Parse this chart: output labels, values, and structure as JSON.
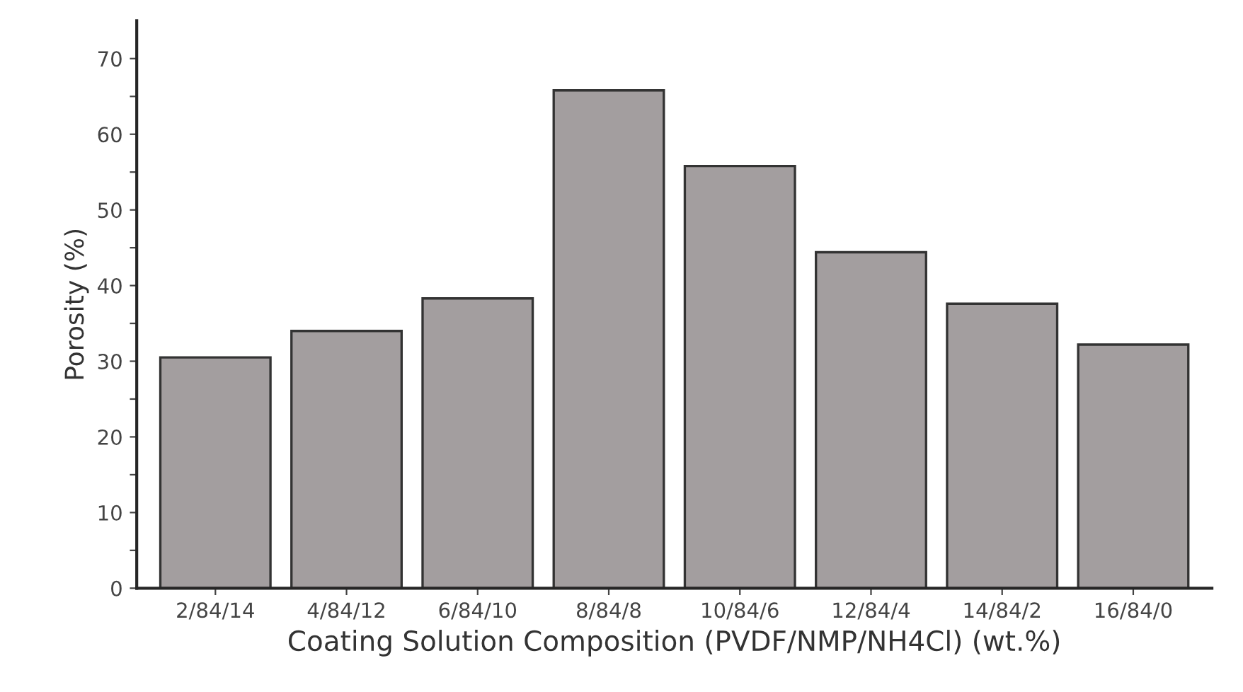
{
  "chart_data": {
    "type": "bar",
    "xlabel": "Coating Solution Composition (PVDF/NMP/NH4Cl) (wt.%)",
    "ylabel": "Porosity (%)",
    "categories": [
      "2/84/14",
      "4/84/12",
      "6/84/10",
      "8/84/8",
      "10/84/6",
      "12/84/4",
      "14/84/2",
      "16/84/0"
    ],
    "values": [
      30.5,
      34.0,
      38.3,
      65.8,
      55.8,
      44.4,
      37.6,
      32.2
    ],
    "color": "#a39e9f",
    "ylim": [
      0,
      75
    ],
    "yticks": [
      0,
      {
        "value": 5,
        "label": null
      },
      10,
      {
        "value": 15,
        "label": null
      },
      20,
      {
        "value": 25,
        "label": null
      },
      30,
      {
        "value": 35,
        "label": null
      },
      40,
      {
        "value": 45,
        "label": null
      },
      50,
      {
        "value": 55,
        "label": null
      },
      60,
      {
        "value": 65,
        "label": null
      },
      70
    ],
    "grid": false
  }
}
